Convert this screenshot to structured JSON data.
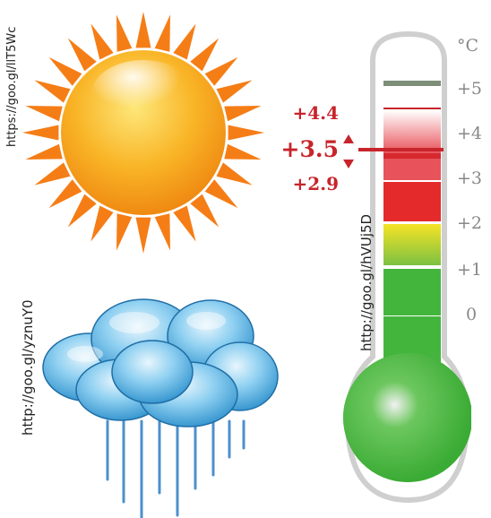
{
  "credits": {
    "sun": "https://goo.gl/llT5Wc",
    "cloud": "http://goo.gl/yznuY0",
    "thermometer": "http://goo.gl/hVUj5D"
  },
  "thermometer": {
    "unit": "°C",
    "scale_labels": [
      "+5",
      "+4",
      "+3",
      "+2",
      "+1",
      "0"
    ],
    "readings": {
      "upper": "+4.4",
      "current": "+3.5",
      "lower": "+2.9"
    },
    "current_value": 3.5,
    "colors": {
      "bulb": "#43b53c",
      "alert": "#d7282f",
      "tube_border": "#cfcfcf"
    }
  },
  "colors": {
    "sun": "#f7a21b",
    "rays": "#f57d16",
    "cloud": "#57b5e6",
    "rain": "#2d7dc4"
  }
}
